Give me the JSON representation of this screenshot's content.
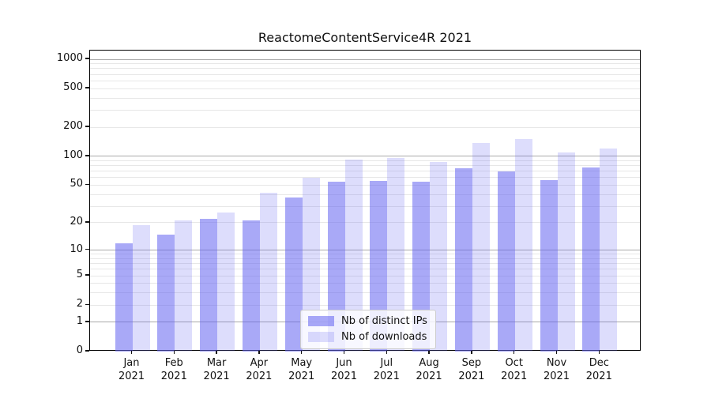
{
  "chart_data": {
    "type": "bar",
    "title": "ReactomeContentService4R 2021",
    "categories": [
      "Jan",
      "Feb",
      "Mar",
      "Apr",
      "May",
      "Jun",
      "Jul",
      "Aug",
      "Sep",
      "Oct",
      "Nov",
      "Dec"
    ],
    "category_year": "2021",
    "series": [
      {
        "name": "Nb of distinct IPs",
        "key": "distinct-ips",
        "color": "rgba(99,99,240,0.55)",
        "values": [
          12,
          15,
          22,
          21,
          37,
          54,
          55,
          54,
          75,
          70,
          57,
          76
        ]
      },
      {
        "name": "Nb of downloads",
        "key": "downloads",
        "color": "rgba(99,99,240,0.22)",
        "values": [
          19,
          21,
          26,
          42,
          60,
          92,
          96,
          88,
          138,
          150,
          110,
          120
        ]
      }
    ],
    "yscale": "log1p",
    "ylim_log1p_max": 3.09,
    "y_tick_values": [
      0,
      1,
      2,
      5,
      10,
      20,
      50,
      100,
      200,
      500,
      1000
    ],
    "y_major_gridlines": [
      1,
      10,
      100,
      1000
    ],
    "y_minor_gridlines": [
      2,
      3,
      4,
      5,
      6,
      7,
      8,
      9,
      20,
      30,
      40,
      50,
      60,
      70,
      80,
      90,
      200,
      300,
      400,
      500,
      600,
      700,
      800,
      900
    ],
    "grid": true,
    "legend_position": "lower-center-inside",
    "colors": {
      "major_grid": "#a9a9a9",
      "minor_grid": "#e7e7e7",
      "spine": "#000000",
      "text": "#111111",
      "legend_border": "#cccccc",
      "legend_bg": "rgba(255,255,255,0.8)"
    }
  }
}
